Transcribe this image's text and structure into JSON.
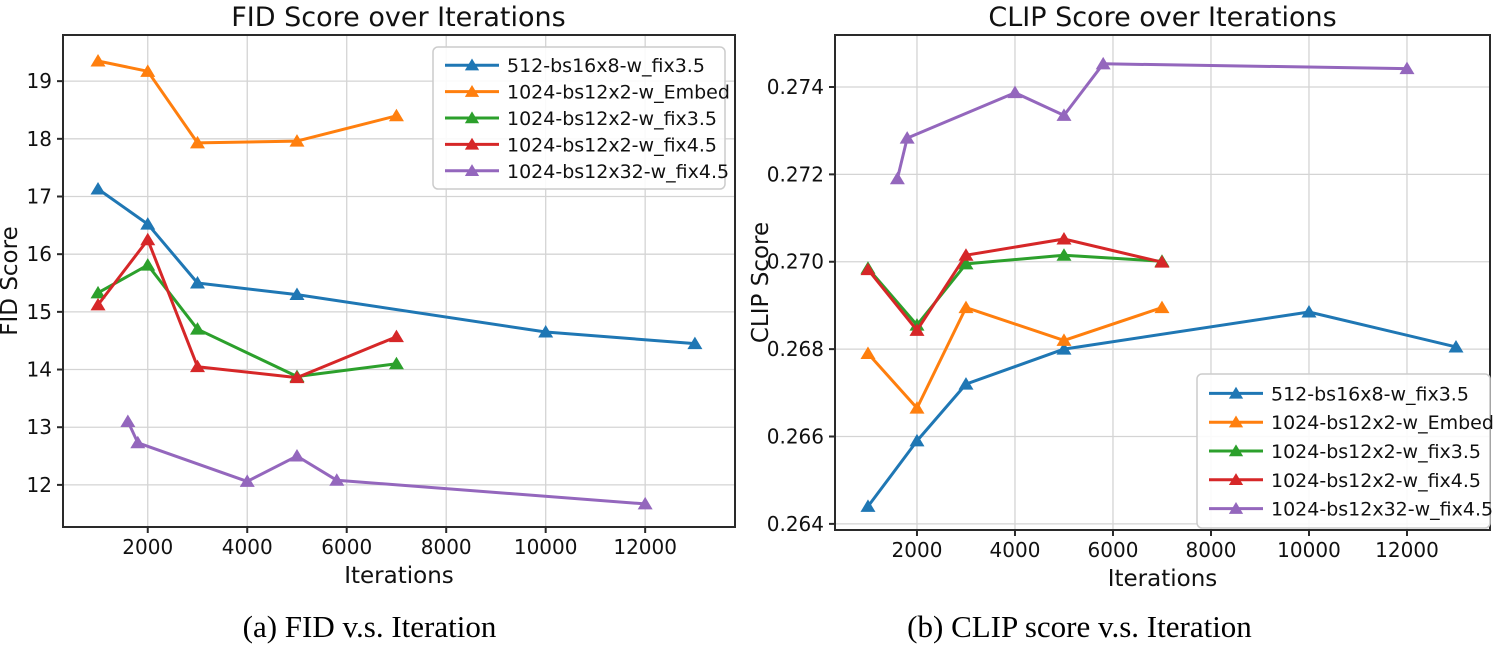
{
  "figure": {
    "captions": {
      "a": "(a) FID v.s. Iteration",
      "b": "(b) CLIP score v.s. Iteration"
    }
  },
  "colors": {
    "blue": "#1f77b4",
    "orange": "#ff7f0e",
    "green": "#2ca02c",
    "red": "#d62728",
    "purple": "#9467bd",
    "grid": "#d4d4d4",
    "spine": "#2a2a2a"
  },
  "chart_data": [
    {
      "id": "fid",
      "type": "line",
      "title": "FID Score over Iterations",
      "xlabel": "Iterations",
      "ylabel": "FID Score",
      "xlim": [
        296,
        13806
      ],
      "ylim": [
        11.27,
        19.8
      ],
      "grid": true,
      "legend_position": "upper right",
      "xticks": {
        "values": [
          2000,
          4000,
          6000,
          8000,
          10000,
          12000
        ],
        "labels": [
          "2000",
          "4000",
          "6000",
          "8000",
          "10000",
          "12000"
        ]
      },
      "yticks": {
        "values": [
          12,
          13,
          14,
          15,
          16,
          17,
          18,
          19
        ],
        "labels": [
          "12",
          "13",
          "14",
          "15",
          "16",
          "17",
          "18",
          "19"
        ]
      },
      "series": [
        {
          "name": "512-bs16x8-w_fix3.5",
          "color": "#1f77b4",
          "marker": "triangle_up",
          "x": [
            1000,
            2000,
            3000,
            5000,
            10000,
            13000
          ],
          "y": [
            17.13,
            16.52,
            15.5,
            15.3,
            14.65,
            14.45
          ]
        },
        {
          "name": "1024-bs12x2-w_Embed",
          "color": "#ff7f0e",
          "marker": "triangle_up",
          "x": [
            1000,
            2000,
            3000,
            5000,
            7000
          ],
          "y": [
            19.35,
            19.17,
            17.93,
            17.96,
            18.4
          ]
        },
        {
          "name": "1024-bs12x2-w_fix3.5",
          "color": "#2ca02c",
          "marker": "triangle_up",
          "x": [
            1000,
            2000,
            3000,
            5000,
            7000
          ],
          "y": [
            15.33,
            15.81,
            14.7,
            13.88,
            14.1
          ]
        },
        {
          "name": "1024-bs12x2-w_fix4.5",
          "color": "#d62728",
          "marker": "triangle_up",
          "x": [
            1000,
            2000,
            3000,
            5000,
            7000
          ],
          "y": [
            15.12,
            16.25,
            14.05,
            13.86,
            14.57
          ]
        },
        {
          "name": "1024-bs12x32-w_fix4.5",
          "color": "#9467bd",
          "marker": "triangle_up",
          "x": [
            1600,
            1800,
            4000,
            5000,
            5800,
            12000
          ],
          "y": [
            13.1,
            12.73,
            12.06,
            12.5,
            12.08,
            11.67
          ]
        }
      ]
    },
    {
      "id": "clip",
      "type": "line",
      "title": "CLIP Score over Iterations",
      "xlabel": "Iterations",
      "ylabel": "CLIP Score",
      "xlim": [
        327,
        13694
      ],
      "ylim": [
        0.26386,
        0.27519
      ],
      "grid": true,
      "legend_position": "lower right",
      "xticks": {
        "values": [
          2000,
          4000,
          6000,
          8000,
          10000,
          12000
        ],
        "labels": [
          "2000",
          "4000",
          "6000",
          "8000",
          "10000",
          "12000"
        ]
      },
      "yticks": {
        "values": [
          0.264,
          0.266,
          0.268,
          0.27,
          0.272,
          0.274
        ],
        "labels": [
          "0.264",
          "0.266",
          "0.268",
          "0.270",
          "0.272",
          "0.274"
        ]
      },
      "series": [
        {
          "name": "512-bs16x8-w_fix3.5",
          "color": "#1f77b4",
          "marker": "triangle_up",
          "x": [
            1000,
            2000,
            3000,
            5000,
            10000,
            13000
          ],
          "y": [
            0.2644,
            0.2659,
            0.2672,
            0.268,
            0.26885,
            0.26805
          ]
        },
        {
          "name": "1024-bs12x2-w_Embed",
          "color": "#ff7f0e",
          "marker": "triangle_up",
          "x": [
            1000,
            2000,
            3000,
            5000,
            7000
          ],
          "y": [
            0.2679,
            0.26665,
            0.26895,
            0.2682,
            0.26895
          ]
        },
        {
          "name": "1024-bs12x2-w_fix3.5",
          "color": "#2ca02c",
          "marker": "triangle_up",
          "x": [
            1000,
            2000,
            3000,
            5000,
            7000
          ],
          "y": [
            0.26985,
            0.26855,
            0.26995,
            0.27015,
            0.27001
          ]
        },
        {
          "name": "1024-bs12x2-w_fix4.5",
          "color": "#d62728",
          "marker": "triangle_up",
          "x": [
            1000,
            2000,
            3000,
            5000,
            7000
          ],
          "y": [
            0.26982,
            0.26843,
            0.27015,
            0.27052,
            0.26999
          ]
        },
        {
          "name": "1024-bs12x32-w_fix4.5",
          "color": "#9467bd",
          "marker": "triangle_up",
          "x": [
            1600,
            1800,
            4000,
            5000,
            5800,
            12000
          ],
          "y": [
            0.2719,
            0.27283,
            0.27387,
            0.27335,
            0.27453,
            0.27442
          ]
        }
      ]
    }
  ]
}
